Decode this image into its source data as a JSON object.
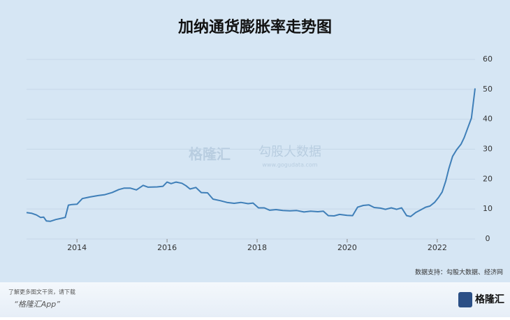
{
  "chart_data": {
    "type": "line",
    "title": "加纳通货膨胀率走势图",
    "x": [
      2012.88,
      2012.99,
      2013.1,
      2013.19,
      2013.26,
      2013.32,
      2013.41,
      2013.53,
      2013.66,
      2013.74,
      2013.81,
      2013.89,
      2014.0,
      2014.12,
      2014.28,
      2014.47,
      2014.62,
      2014.78,
      2014.93,
      2015.05,
      2015.18,
      2015.32,
      2015.47,
      2015.58,
      2015.78,
      2015.91,
      2016.0,
      2016.09,
      2016.2,
      2016.33,
      2016.42,
      2016.51,
      2016.64,
      2016.76,
      2016.9,
      2017.02,
      2017.18,
      2017.33,
      2017.49,
      2017.64,
      2017.8,
      2017.91,
      2018.03,
      2018.16,
      2018.28,
      2018.42,
      2018.57,
      2018.73,
      2018.88,
      2019.04,
      2019.19,
      2019.35,
      2019.47,
      2019.58,
      2019.71,
      2019.83,
      2020.0,
      2020.12,
      2020.23,
      2020.36,
      2020.48,
      2020.6,
      2020.74,
      2020.85,
      2020.98,
      2021.1,
      2021.21,
      2021.32,
      2021.41,
      2021.52,
      2021.63,
      2021.74,
      2021.84,
      2021.94,
      2022.03,
      2022.11,
      2022.19,
      2022.26,
      2022.34,
      2022.43,
      2022.53,
      2022.6,
      2022.68,
      2022.76,
      2022.84
    ],
    "series": [
      {
        "color": "#3f7fb8",
        "values": [
          8.8,
          8.6,
          8.0,
          7.2,
          7.3,
          6.0,
          5.9,
          6.5,
          6.9,
          7.2,
          11.3,
          11.5,
          11.6,
          13.5,
          14.0,
          14.5,
          14.8,
          15.5,
          16.5,
          17.0,
          17.0,
          16.4,
          17.9,
          17.3,
          17.4,
          17.6,
          19.0,
          18.5,
          19.0,
          18.6,
          17.8,
          16.7,
          17.2,
          15.5,
          15.4,
          13.3,
          12.8,
          12.2,
          11.9,
          12.2,
          11.8,
          12.0,
          10.4,
          10.4,
          9.6,
          9.8,
          9.5,
          9.4,
          9.5,
          9.0,
          9.3,
          9.1,
          9.3,
          7.8,
          7.7,
          8.2,
          7.9,
          7.8,
          10.6,
          11.2,
          11.4,
          10.5,
          10.3,
          9.9,
          10.4,
          9.9,
          10.4,
          7.8,
          7.5,
          8.8,
          9.7,
          10.6,
          11.0,
          12.2,
          13.9,
          15.7,
          19.4,
          23.6,
          27.6,
          29.8,
          31.7,
          33.9,
          37.2,
          40.4,
          50.3
        ]
      }
    ],
    "xlim": [
      2012.88,
      2022.84
    ],
    "xticks": [
      2014,
      2016,
      2018,
      2020,
      2022
    ],
    "ylim": [
      0,
      60
    ],
    "yticks": [
      0,
      10,
      20,
      30,
      40,
      50,
      60
    ],
    "grid": true,
    "source": "数据支持：勾股大数据、经济网",
    "watermark": {
      "brand": "格隆汇",
      "partner": "勾股大数据",
      "url": "www.gogudata.com"
    }
  },
  "footer": {
    "prompt": "了解更多图文干货，请下载",
    "app": "“格隆汇App”",
    "logo": "格隆汇"
  }
}
